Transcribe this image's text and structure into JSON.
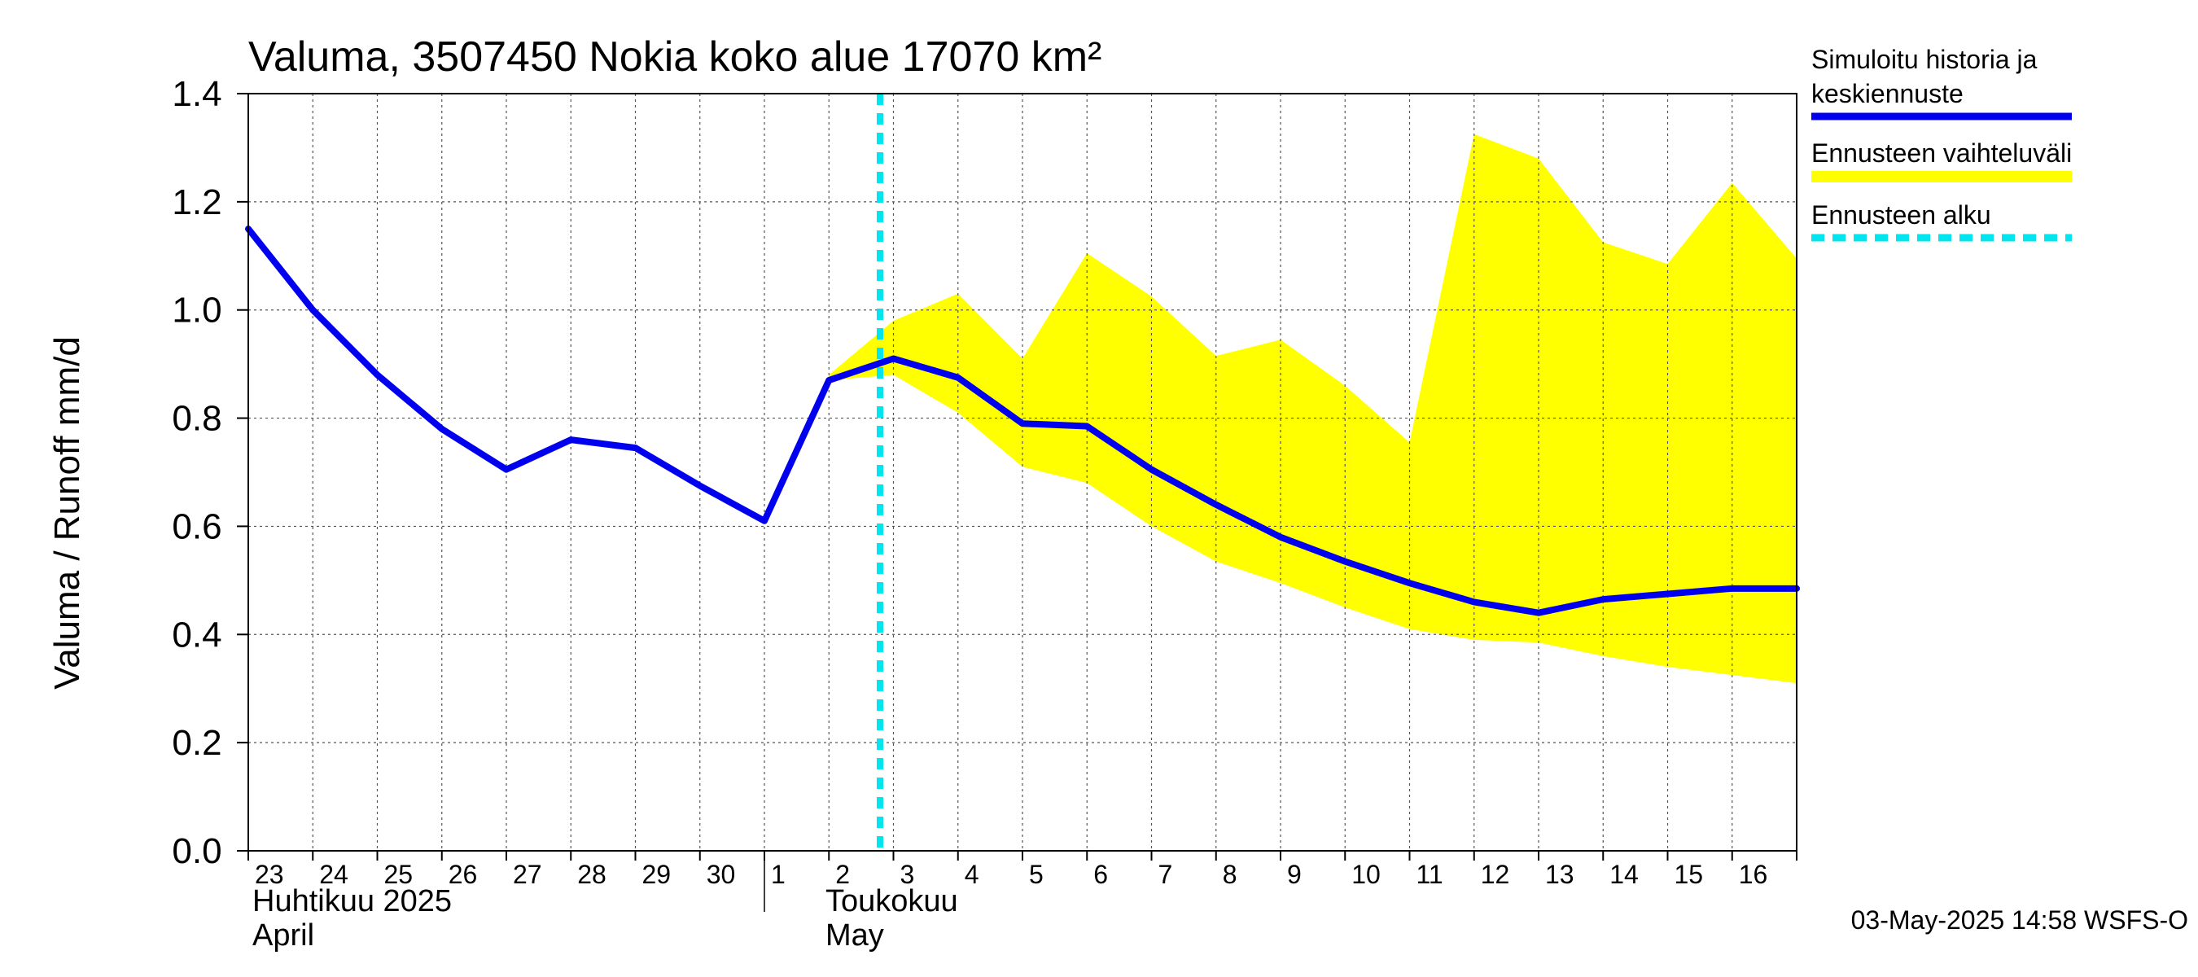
{
  "chart_data": {
    "type": "line",
    "title": "Valuma, 3507450 Nokia koko alue 17070 km²",
    "ylabel": "Valuma / Runoff     mm/d",
    "ylim": [
      0,
      1.4
    ],
    "yticks": [
      "0.0",
      "0.2",
      "0.4",
      "0.6",
      "0.8",
      "1.0",
      "1.2",
      "1.4"
    ],
    "x_tick_labels": [
      "23",
      "24",
      "25",
      "26",
      "27",
      "28",
      "29",
      "30",
      "1",
      "2",
      "3",
      "4",
      "5",
      "6",
      "7",
      "8",
      "9",
      "10",
      "11",
      "12",
      "13",
      "14",
      "15",
      "16"
    ],
    "month_labels": {
      "april_fi": "Huhtikuu  2025",
      "april_en": "April",
      "may_fi": "Toukokuu",
      "may_en": "May"
    },
    "x": [
      "2025-04-23",
      "2025-04-24",
      "2025-04-25",
      "2025-04-26",
      "2025-04-27",
      "2025-04-28",
      "2025-04-29",
      "2025-04-30",
      "2025-05-01",
      "2025-05-02",
      "2025-05-03",
      "2025-05-04",
      "2025-05-05",
      "2025-05-06",
      "2025-05-07",
      "2025-05-08",
      "2025-05-09",
      "2025-05-10",
      "2025-05-11",
      "2025-05-12",
      "2025-05-13",
      "2025-05-14",
      "2025-05-15",
      "2025-05-16",
      "2025-05-17"
    ],
    "series": [
      {
        "name": "Simuloitu historia ja keskiennuste",
        "color": "#0000ee",
        "values": [
          1.15,
          1.0,
          0.88,
          0.78,
          0.705,
          0.76,
          0.745,
          0.675,
          0.61,
          0.87,
          0.91,
          0.875,
          0.79,
          0.785,
          0.705,
          0.64,
          0.58,
          0.535,
          0.495,
          0.46,
          0.44,
          0.465,
          0.475,
          0.485,
          0.485
        ]
      }
    ],
    "band": {
      "name": "Ennusteen vaihteluväli",
      "color": "#ffff00",
      "x": [
        "2025-05-02",
        "2025-05-03",
        "2025-05-04",
        "2025-05-05",
        "2025-05-06",
        "2025-05-07",
        "2025-05-08",
        "2025-05-09",
        "2025-05-10",
        "2025-05-11",
        "2025-05-12",
        "2025-05-13",
        "2025-05-14",
        "2025-05-15",
        "2025-05-16",
        "2025-05-17"
      ],
      "upper": [
        0.88,
        0.98,
        1.03,
        0.91,
        1.105,
        1.025,
        0.915,
        0.945,
        0.86,
        0.755,
        1.325,
        1.28,
        1.125,
        1.085,
        1.235,
        1.095
      ],
      "lower": [
        0.87,
        0.88,
        0.81,
        0.71,
        0.68,
        0.6,
        0.535,
        0.495,
        0.45,
        0.41,
        0.39,
        0.385,
        0.36,
        0.34,
        0.325,
        0.31
      ]
    },
    "forecast_start": {
      "name": "Ennusteen alku",
      "color": "#00e5ee",
      "x": "2025-05-02T19:00"
    },
    "legend": [
      {
        "label_lines": [
          "Simuloitu historia ja",
          "keskiennuste"
        ],
        "color": "#0000ee",
        "style": "solid"
      },
      {
        "label_lines": [
          "Ennusteen vaihteluväli"
        ],
        "color": "#ffff00",
        "style": "solid"
      },
      {
        "label_lines": [
          "Ennusteen alku"
        ],
        "color": "#00e5ee",
        "style": "dashed"
      }
    ],
    "legend_position": "right",
    "grid": true,
    "timestamp": "03-May-2025 14:58 WSFS-O"
  }
}
